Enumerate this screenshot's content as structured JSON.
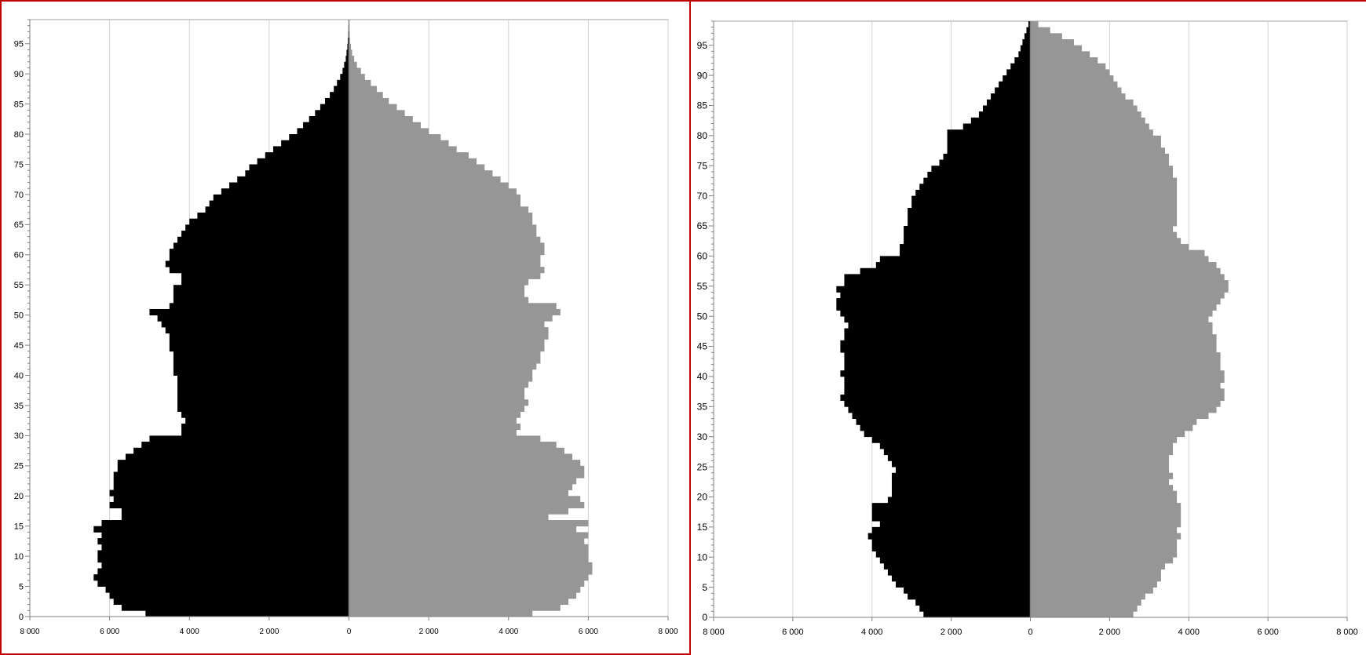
{
  "chart_data": [
    {
      "type": "bar",
      "orientation": "horizontal",
      "layout": "population-pyramid",
      "x_tick_labels": [
        "8 000",
        "6 000",
        "4 000",
        "2 000",
        "0",
        "2 000",
        "4 000",
        "6 000",
        "8 000"
      ],
      "y_tick_labels": [
        "0",
        "5",
        "10",
        "15",
        "20",
        "25",
        "30",
        "35",
        "40",
        "45",
        "50",
        "55",
        "60",
        "65",
        "70",
        "75",
        "80",
        "85",
        "90",
        "95"
      ],
      "xlim": [
        -8000,
        8000
      ],
      "ylim": [
        0,
        99
      ],
      "grid": "vertical",
      "colors": {
        "left": "#000000",
        "right": "#969696"
      },
      "series": [
        {
          "values": [
            5100,
            5700,
            5900,
            6000,
            6100,
            6300,
            6400,
            6300,
            6200,
            6300,
            6300,
            6200,
            6300,
            6200,
            6400,
            6200,
            5700,
            5700,
            6000,
            5900,
            6000,
            5900,
            5900,
            5900,
            5800,
            5800,
            5600,
            5400,
            5200,
            5000,
            4200,
            4200,
            4100,
            4200,
            4300,
            4300,
            4300,
            4300,
            4300,
            4300,
            4400,
            4400,
            4400,
            4400,
            4500,
            4500,
            4500,
            4600,
            4700,
            4800,
            5000,
            4500,
            4400,
            4400,
            4400,
            4200,
            4200,
            4500,
            4600,
            4500,
            4500,
            4400,
            4300,
            4200,
            4100,
            4000,
            3800,
            3600,
            3500,
            3400,
            3200,
            3000,
            2800,
            2600,
            2500,
            2300,
            2100,
            1900,
            1700,
            1500,
            1300,
            1150,
            1000,
            850,
            720,
            600,
            480,
            380,
            300,
            220,
            160,
            120,
            80,
            60,
            40,
            30,
            20,
            15,
            10
          ]
        },
        {
          "values": [
            4600,
            5300,
            5500,
            5700,
            5800,
            5900,
            6000,
            6100,
            6100,
            6000,
            6000,
            6000,
            5900,
            6000,
            5700,
            6000,
            5000,
            5500,
            5900,
            5800,
            5500,
            5600,
            5700,
            5900,
            5900,
            5800,
            5600,
            5400,
            5200,
            4800,
            4200,
            4300,
            4200,
            4300,
            4400,
            4500,
            4400,
            4400,
            4500,
            4600,
            4600,
            4700,
            4800,
            4800,
            4900,
            4900,
            5000,
            5000,
            4900,
            5100,
            5300,
            5200,
            4500,
            4400,
            4400,
            4500,
            4800,
            4900,
            4800,
            4800,
            4900,
            4900,
            4800,
            4700,
            4700,
            4600,
            4600,
            4500,
            4300,
            4300,
            4200,
            4000,
            3800,
            3600,
            3400,
            3200,
            3000,
            2700,
            2500,
            2300,
            2000,
            1800,
            1600,
            1400,
            1200,
            1000,
            850,
            700,
            550,
            400,
            300,
            200,
            130,
            80,
            50,
            30,
            20,
            12,
            8
          ]
        }
      ]
    },
    {
      "type": "bar",
      "orientation": "horizontal",
      "layout": "population-pyramid",
      "x_tick_labels": [
        "8 000",
        "6 000",
        "4 000",
        "2 000",
        "0",
        "2 000",
        "4 000",
        "6 000",
        "8 000"
      ],
      "y_tick_labels": [
        "0",
        "5",
        "10",
        "15",
        "20",
        "25",
        "30",
        "35",
        "40",
        "45",
        "50",
        "55",
        "60",
        "65",
        "70",
        "75",
        "80",
        "85",
        "90",
        "95"
      ],
      "xlim": [
        -8000,
        8000
      ],
      "ylim": [
        0,
        99
      ],
      "grid": "vertical",
      "colors": {
        "left": "#000000",
        "right": "#969696"
      },
      "series": [
        {
          "values": [
            2700,
            2800,
            2900,
            3100,
            3200,
            3400,
            3500,
            3600,
            3700,
            3800,
            3900,
            4000,
            4000,
            4100,
            4000,
            3800,
            4000,
            4000,
            4000,
            3600,
            3500,
            3500,
            3500,
            3500,
            3400,
            3500,
            3600,
            3700,
            3800,
            4000,
            4200,
            4300,
            4400,
            4500,
            4600,
            4700,
            4800,
            4700,
            4700,
            4700,
            4800,
            4700,
            4700,
            4700,
            4800,
            4800,
            4700,
            4700,
            4600,
            4700,
            4800,
            4900,
            4900,
            4800,
            4900,
            4700,
            4700,
            4300,
            3900,
            3800,
            3300,
            3300,
            3200,
            3200,
            3200,
            3100,
            3100,
            3100,
            3000,
            3000,
            2900,
            2800,
            2700,
            2600,
            2500,
            2300,
            2200,
            2100,
            2100,
            2100,
            2100,
            1700,
            1500,
            1300,
            1200,
            1100,
            1000,
            900,
            800,
            700,
            600,
            500,
            400,
            300,
            250,
            200,
            150,
            100,
            50
          ]
        },
        {
          "values": [
            2600,
            2700,
            2800,
            2900,
            3100,
            3200,
            3300,
            3300,
            3400,
            3600,
            3700,
            3700,
            3700,
            3800,
            3700,
            3800,
            3800,
            3800,
            3800,
            3700,
            3700,
            3600,
            3500,
            3600,
            3500,
            3500,
            3500,
            3600,
            3600,
            3700,
            3900,
            4100,
            4200,
            4500,
            4700,
            4800,
            4900,
            4900,
            4800,
            4900,
            4900,
            4800,
            4800,
            4800,
            4700,
            4700,
            4700,
            4600,
            4600,
            4500,
            4600,
            4700,
            4800,
            4900,
            5000,
            5000,
            4900,
            4800,
            4700,
            4500,
            4400,
            4000,
            3800,
            3700,
            3600,
            3700,
            3700,
            3700,
            3700,
            3700,
            3700,
            3700,
            3700,
            3600,
            3600,
            3500,
            3500,
            3400,
            3300,
            3300,
            3100,
            3000,
            2900,
            2800,
            2700,
            2600,
            2400,
            2300,
            2200,
            2100,
            2000,
            1900,
            1700,
            1500,
            1300,
            1100,
            800,
            500,
            200
          ]
        }
      ]
    }
  ]
}
